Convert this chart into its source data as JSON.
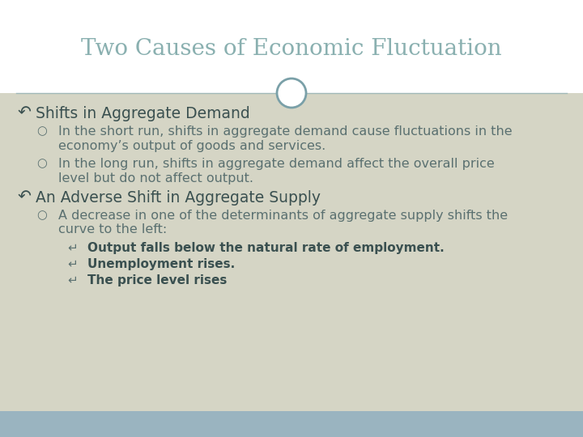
{
  "title": "Two Causes of Economic Fluctuation",
  "title_color": "#8ab0b0",
  "title_fontsize": 20,
  "bg_top": "#ffffff",
  "bg_bottom": "#d5d5c5",
  "footer_color": "#9ab4c0",
  "divider_color": "#a0b8b8",
  "circle_edge_color": "#7aa0a8",
  "circle_face_color": "#ffffff",
  "text_color": "#4a6060",
  "heading_color": "#3a5050",
  "body_color": "#5a7070",
  "bullet1_heading": "Shifts in Aggregate Demand",
  "bullet1_sub1a": "In the short run, shifts in aggregate demand cause fluctuations in the",
  "bullet1_sub1b": "economy’s output of goods and services.",
  "bullet1_sub2a": "In the long run, shifts in aggregate demand affect the overall price",
  "bullet1_sub2b": "level but do not affect output.",
  "bullet2_heading": "An Adverse Shift in Aggregate Supply",
  "bullet2_sub1a": "A decrease in one of the determinants of aggregate supply shifts the",
  "bullet2_sub1b": "curve to the left:",
  "bullet2_sub1_sub1": "Output falls below the natural rate of employment.",
  "bullet2_sub1_sub2": "Unemployment rises.",
  "bullet2_sub1_sub3": "The price level rises"
}
